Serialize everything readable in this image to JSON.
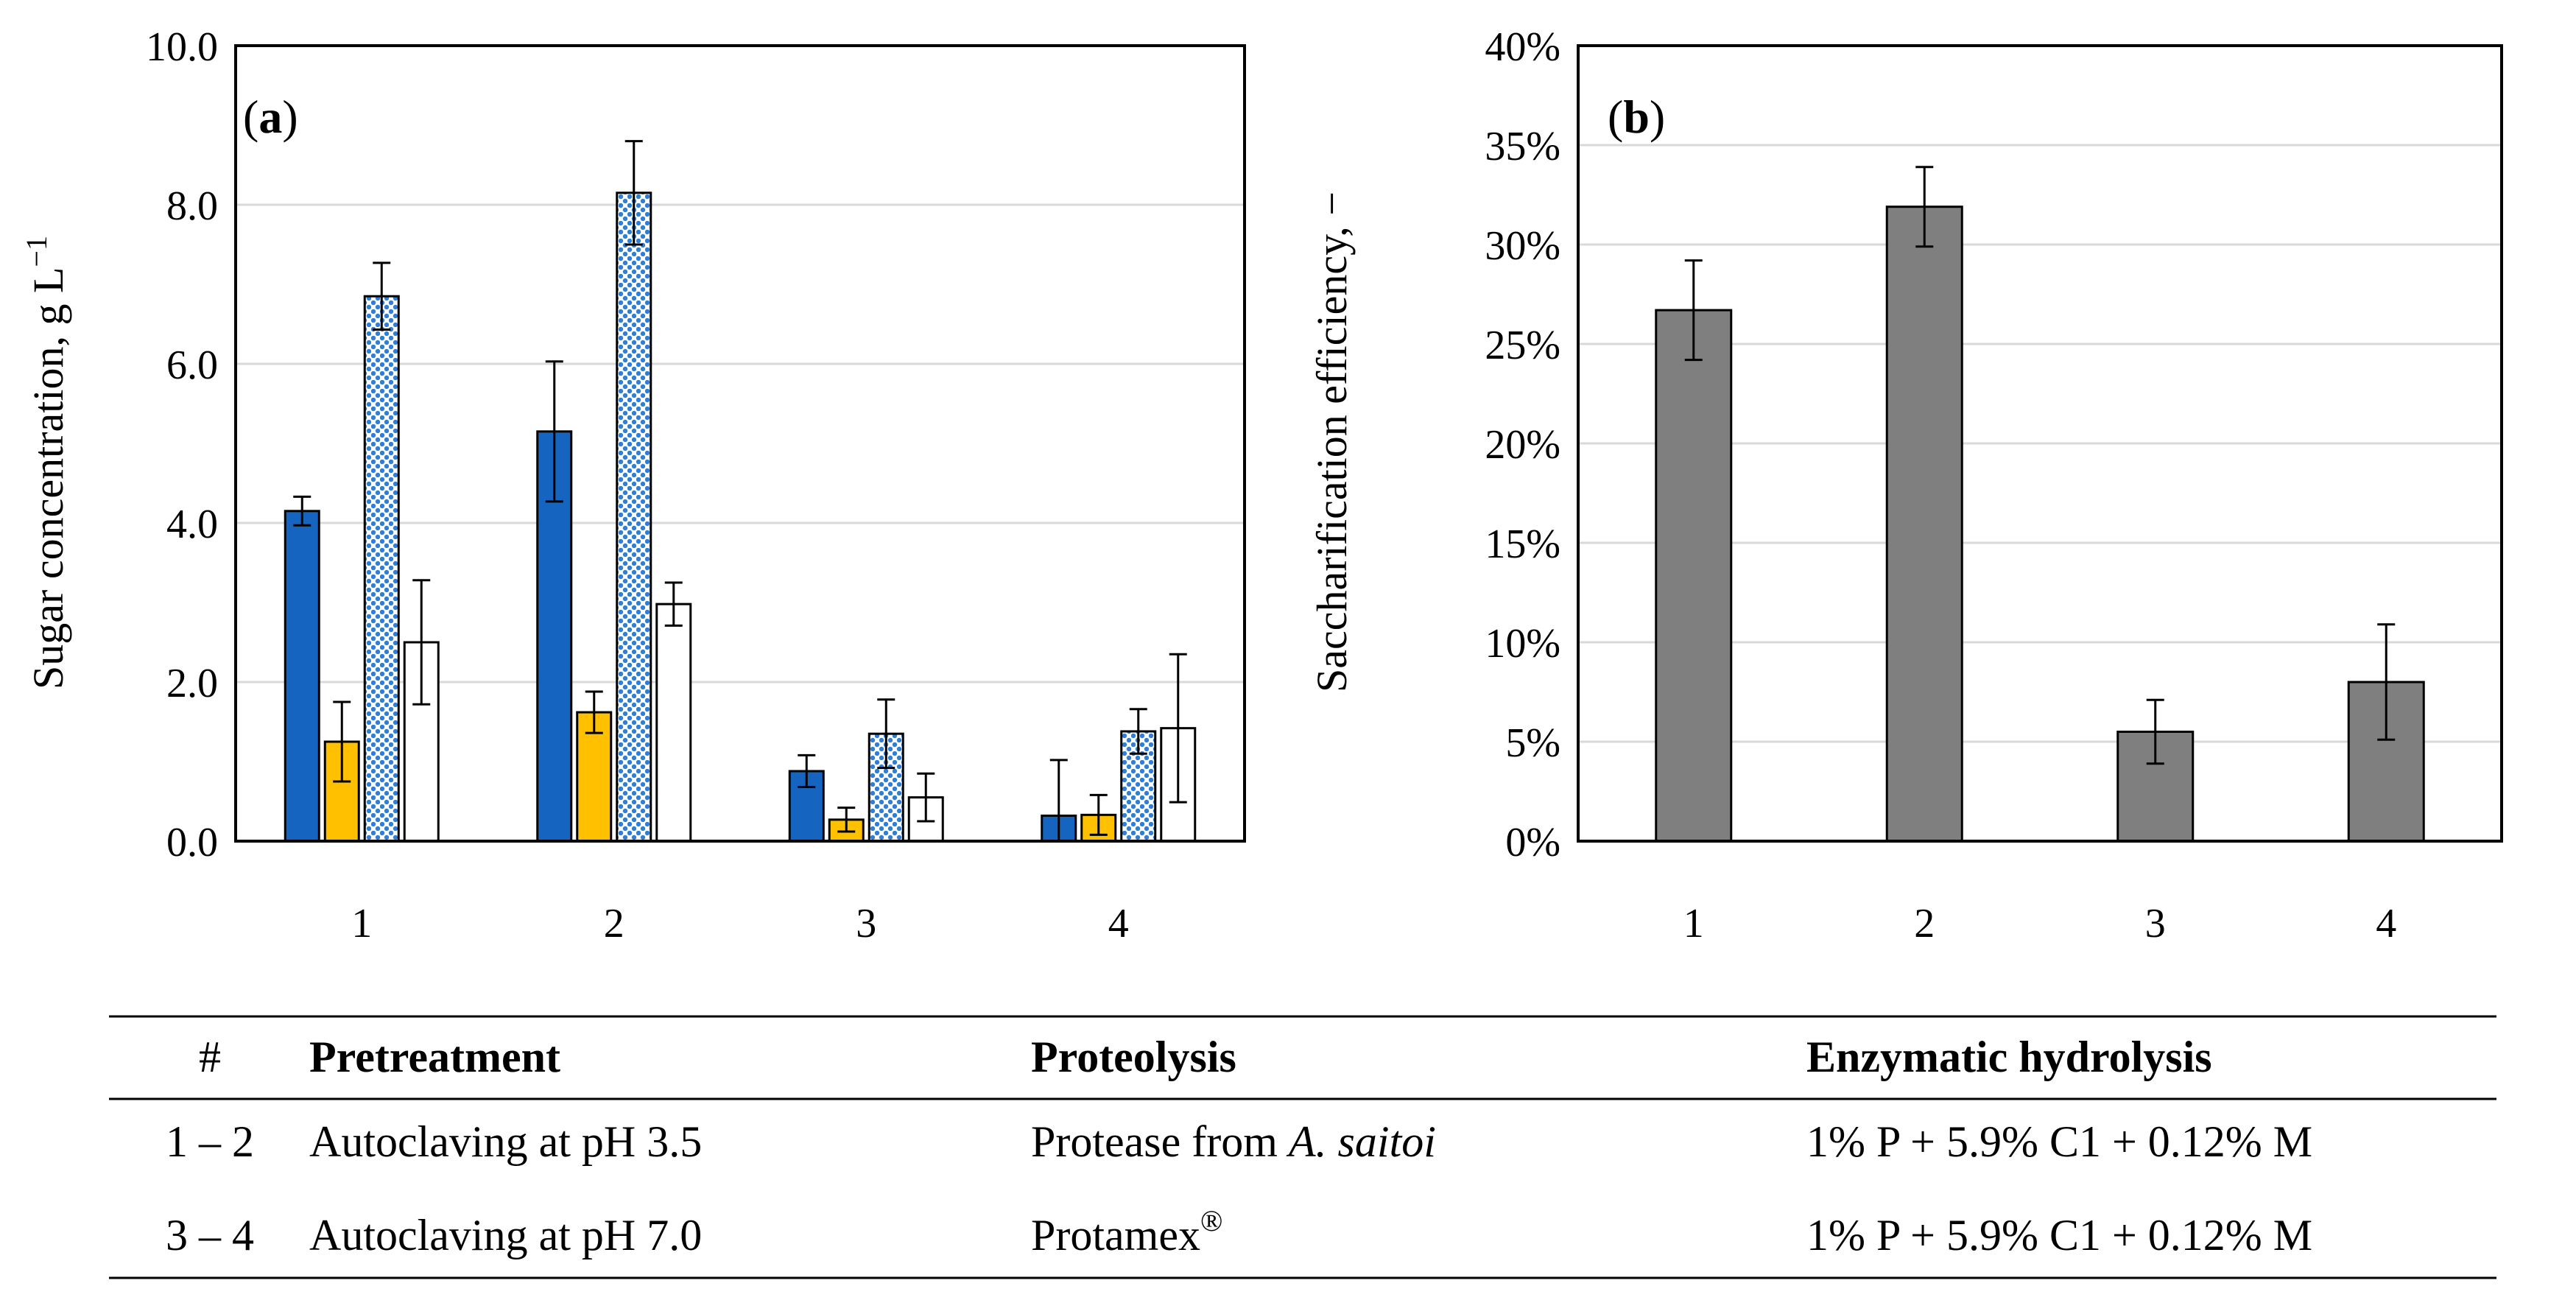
{
  "chart_data": [
    {
      "panel": "(a)",
      "panel_letter": "a",
      "type": "bar",
      "ylabel": "Sugar concentration, g L",
      "ylabel_sup": "−1",
      "xlabel": "",
      "categories": [
        "1",
        "2",
        "3",
        "4"
      ],
      "ylim": [
        0,
        10
      ],
      "yticks": [
        0,
        2,
        4,
        6,
        8,
        10
      ],
      "ytick_labels": [
        "0.0",
        "2.0",
        "4.0",
        "6.0",
        "8.0",
        "10.0"
      ],
      "grid": true,
      "legend": "none",
      "series": [
        {
          "name": "series-1",
          "color": "#1565c0",
          "pattern": "solid",
          "values": [
            4.15,
            5.15,
            0.88,
            0.32
          ],
          "errors": [
            0.18,
            0.88,
            0.2,
            0.7
          ]
        },
        {
          "name": "series-2",
          "color": "#ffc000",
          "pattern": "solid",
          "values": [
            1.25,
            1.62,
            0.27,
            0.33
          ],
          "errors": [
            0.5,
            0.26,
            0.15,
            0.25
          ]
        },
        {
          "name": "series-3",
          "color": "#2f7fd6",
          "pattern": "dotted",
          "values": [
            6.85,
            8.15,
            1.35,
            1.38
          ],
          "errors": [
            0.42,
            0.65,
            0.43,
            0.28
          ]
        },
        {
          "name": "series-4",
          "color": "#ffffff",
          "pattern": "solid",
          "values": [
            2.5,
            2.98,
            0.55,
            1.42
          ],
          "errors": [
            0.78,
            0.27,
            0.3,
            0.93
          ]
        }
      ]
    },
    {
      "panel": "(b)",
      "panel_letter": "b",
      "type": "bar",
      "ylabel": "Saccharification efficiency, −",
      "xlabel": "",
      "categories": [
        "1",
        "2",
        "3",
        "4"
      ],
      "ylim": [
        0,
        40
      ],
      "yticks": [
        0,
        5,
        10,
        15,
        20,
        25,
        30,
        35,
        40
      ],
      "ytick_labels": [
        "0%",
        "5%",
        "10%",
        "15%",
        "20%",
        "25%",
        "30%",
        "35%",
        "40%"
      ],
      "grid": true,
      "legend": "none",
      "series": [
        {
          "name": "saccharification-efficiency",
          "color": "#7f7f7f",
          "values": [
            26.7,
            31.9,
            5.5,
            8.0
          ],
          "errors": [
            2.5,
            2.0,
            1.6,
            2.9
          ]
        }
      ]
    }
  ],
  "table": {
    "headers": {
      "num": "#",
      "pretreatment": "Pretreatment",
      "proteolysis": "Proteolysis",
      "hydrolysis": "Enzymatic hydrolysis"
    },
    "rows": [
      {
        "num": "1 – 2",
        "pretreatment": "Autoclaving at pH 3.5",
        "proteolysis_text": "Protease from ",
        "proteolysis_italic": "A. saitoi",
        "proteolysis_sup": "",
        "hydrolysis": "1% P + 5.9% C1 + 0.12% M"
      },
      {
        "num": "3 – 4",
        "pretreatment": "Autoclaving at pH 7.0",
        "proteolysis_text": "Protamex",
        "proteolysis_italic": "",
        "proteolysis_sup": "®",
        "hydrolysis": "1% P + 5.9% C1 + 0.12% M"
      }
    ]
  }
}
